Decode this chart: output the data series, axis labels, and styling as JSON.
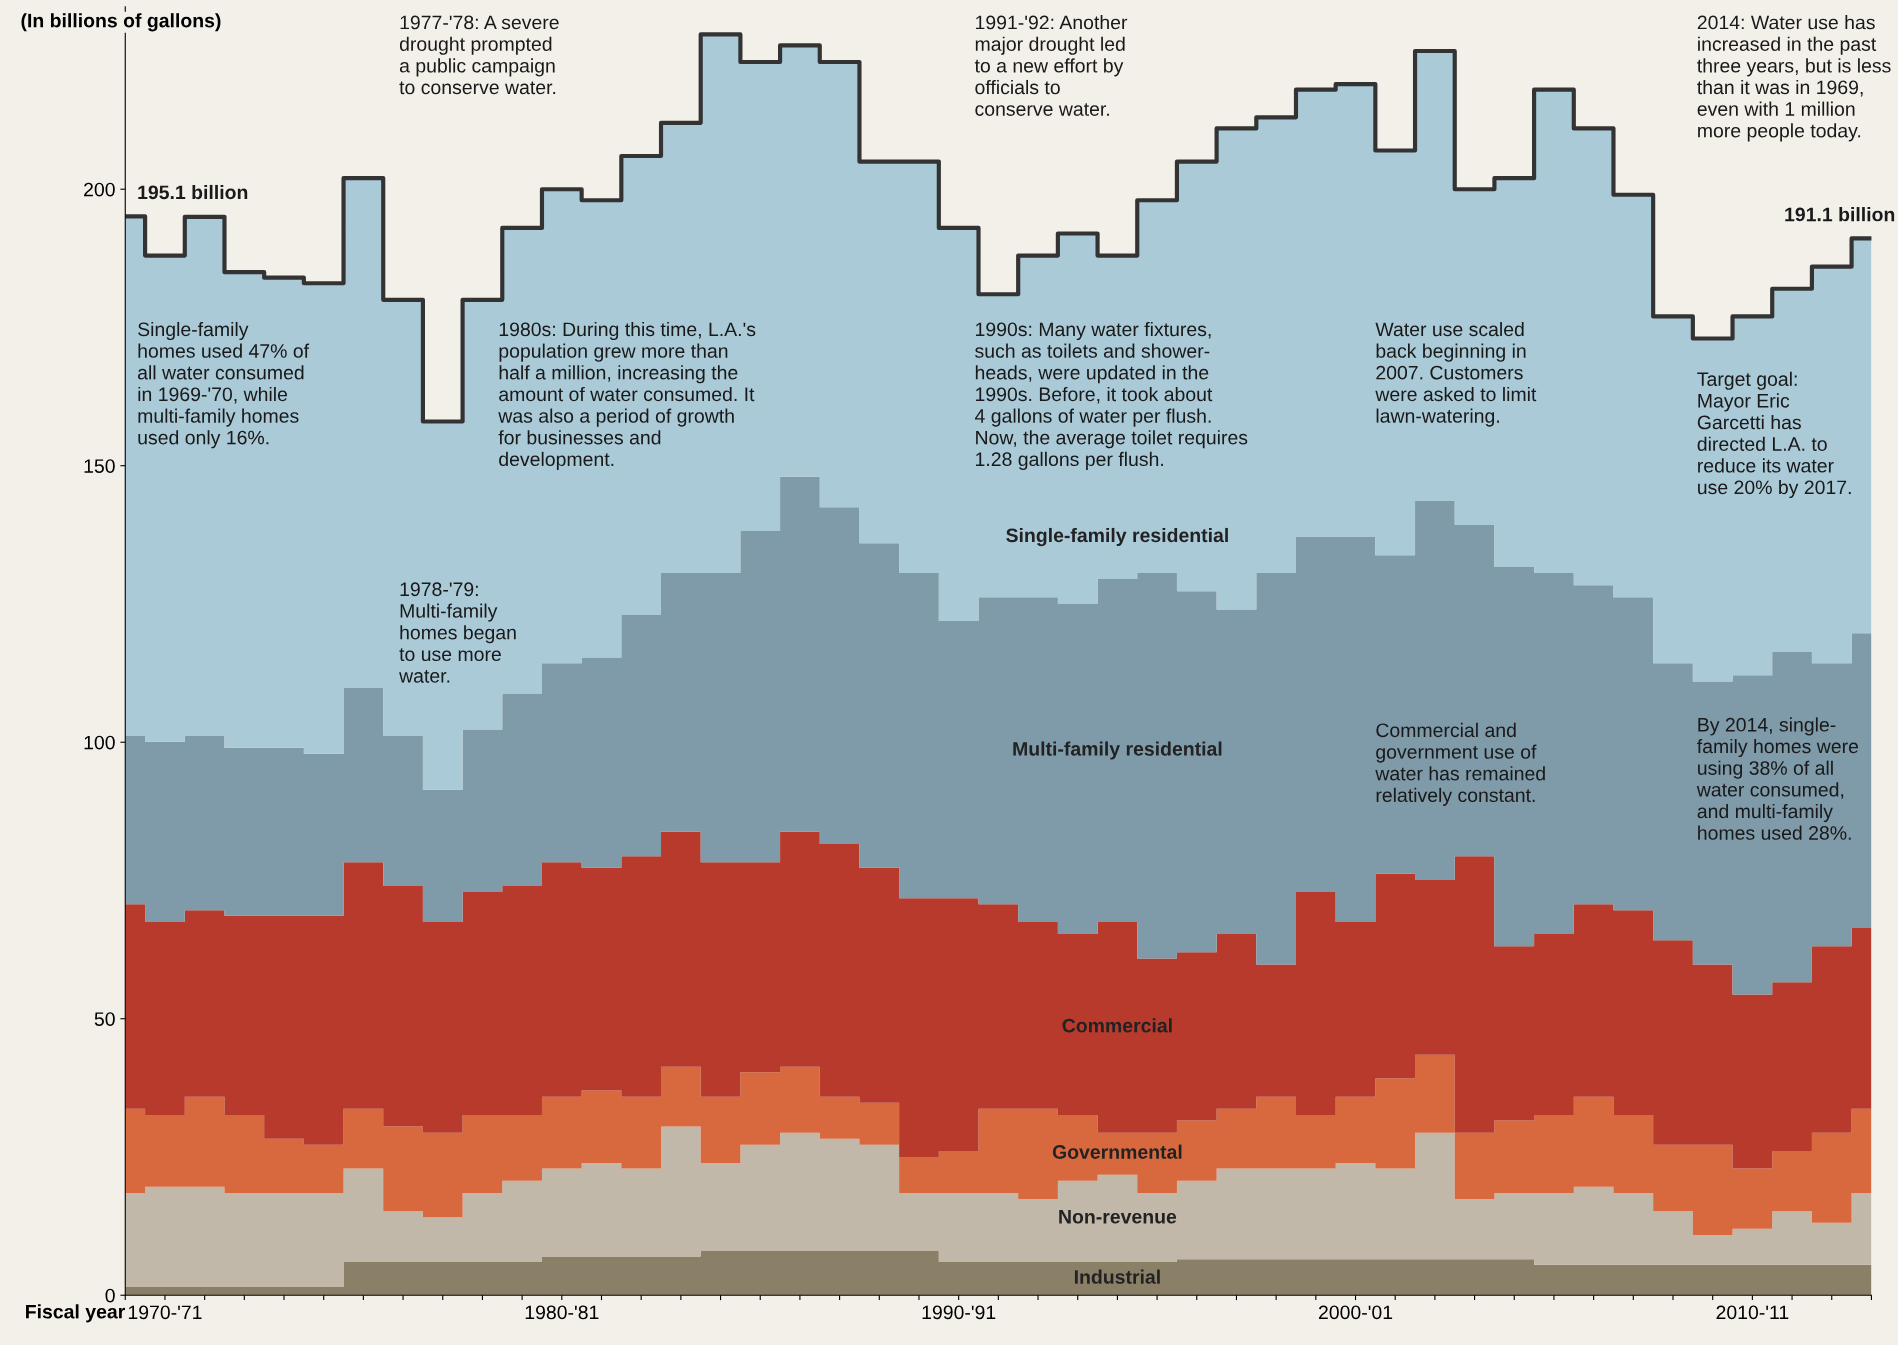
{
  "chart_data": {
    "type": "area",
    "stacked": true,
    "xlabel": "Fiscal year",
    "ylabel": "(In billions of gallons)",
    "categories": [
      null,
      "1970-'71",
      null,
      null,
      null,
      null,
      null,
      null,
      null,
      null,
      null,
      "1980-'81",
      null,
      null,
      null,
      null,
      null,
      null,
      null,
      null,
      null,
      "1990-'91",
      null,
      null,
      null,
      null,
      null,
      null,
      null,
      null,
      null,
      "2000-'01",
      null,
      null,
      null,
      null,
      null,
      null,
      null,
      null,
      null,
      "2010-'11",
      null,
      null,
      null
    ],
    "ylim": [
      0,
      233
    ],
    "yticks": [
      0,
      50,
      100,
      150,
      200
    ],
    "grid": false,
    "legend": false,
    "series": [
      {
        "name": "Industrial",
        "color": "#8a8068",
        "values": [
          1.5,
          1.5,
          1.5,
          1.5,
          1.5,
          1.5,
          6,
          6,
          6,
          6,
          6,
          7,
          7,
          7,
          7,
          8,
          8,
          8,
          8,
          8,
          8,
          6,
          6,
          6,
          6,
          6,
          6,
          6.5,
          6.5,
          6.5,
          6.5,
          6.5,
          6.5,
          6.5,
          6.5,
          6.5,
          5.5,
          5.5,
          5.5,
          5.5,
          5.5,
          5.5,
          5.5,
          5.5,
          5.5
        ]
      },
      {
        "name": "Non-revenue",
        "color": "#c2b8aa",
        "values": [
          17.0,
          18.1,
          18.1,
          17.0,
          17.0,
          17.0,
          16.9,
          9.2,
          8.1,
          12.5,
          14.7,
          15.9,
          16.9,
          15.9,
          23.5,
          15.9,
          19.2,
          21.4,
          20.3,
          19.2,
          10.5,
          12.5,
          12.5,
          11.4,
          14.7,
          15.8,
          12.5,
          14.2,
          16.4,
          16.4,
          16.4,
          17.4,
          16.4,
          22.9,
          10.9,
          12.0,
          13.0,
          14.1,
          13.0,
          9.7,
          5.4,
          6.5,
          9.7,
          7.6,
          13.0
        ]
      },
      {
        "name": "Governmental",
        "color": "#d8693f",
        "values": [
          15.2,
          13.0,
          16.3,
          14.1,
          9.8,
          8.7,
          10.8,
          15.3,
          15.3,
          14.1,
          11.9,
          13.0,
          13.1,
          13.0,
          10.8,
          12.0,
          13.1,
          11.9,
          7.6,
          7.6,
          6.5,
          7.6,
          15.2,
          16.3,
          11.9,
          7.6,
          10.9,
          10.9,
          10.8,
          13.0,
          9.7,
          12.0,
          16.3,
          14.1,
          12.0,
          13.1,
          14.1,
          16.3,
          14.1,
          12.0,
          16.3,
          10.9,
          10.9,
          16.3,
          15.2
        ]
      },
      {
        "name": "Commercial",
        "color": "#b73a2c",
        "values": [
          37.0,
          34.9,
          33.7,
          36.0,
          40.3,
          41.4,
          44.6,
          43.5,
          38.1,
          40.3,
          41.4,
          42.4,
          40.3,
          43.5,
          42.5,
          42.4,
          38.0,
          42.5,
          45.7,
          42.5,
          46.8,
          45.7,
          37.0,
          33.8,
          32.7,
          38.1,
          31.5,
          30.4,
          31.6,
          23.9,
          40.3,
          31.6,
          37.0,
          31.6,
          50.0,
          31.5,
          32.7,
          34.8,
          37.0,
          37.0,
          32.6,
          31.5,
          30.5,
          33.7,
          32.7
        ]
      },
      {
        "name": "Multi-family residential",
        "color": "#7f9aa8",
        "values": [
          30.5,
          32.6,
          31.6,
          30.4,
          30.4,
          29.3,
          31.6,
          27.2,
          23.9,
          29.4,
          34.8,
          36.0,
          38.0,
          43.6,
          46.8,
          52.3,
          59.9,
          64.2,
          60.9,
          58.7,
          58.8,
          50.1,
          55.5,
          58.7,
          59.8,
          62.0,
          69.7,
          65.3,
          58.7,
          70.8,
          64.2,
          69.6,
          57.6,
          68.5,
          59.9,
          68.6,
          65.3,
          57.7,
          56.6,
          50.1,
          51.2,
          57.7,
          59.8,
          51.2,
          53.3
        ]
      },
      {
        "name": "Single-family residential",
        "color": "#aacad8",
        "values": [
          93.9,
          87.9,
          93.8,
          86.0,
          85.0,
          85.1,
          92.1,
          78.8,
          66.6,
          77.7,
          84.2,
          85.7,
          82.7,
          83.0,
          81.4,
          97.4,
          84.8,
          78.0,
          80.5,
          69.0,
          74.4,
          71.1,
          54.8,
          61.8,
          66.9,
          58.5,
          67.4,
          77.7,
          87.0,
          82.4,
          80.9,
          81.9,
          73.2,
          81.4,
          60.7,
          70.3,
          87.4,
          82.6,
          72.8,
          62.7,
          62.0,
          64.9,
          65.6,
          71.7,
          71.4
        ]
      },
      {
        "type": "step",
        "color": "#333333",
        "values": [
          195.1,
          188,
          195,
          185,
          184,
          183,
          202,
          180,
          158,
          180,
          193,
          200,
          198,
          206,
          212,
          228,
          223,
          226,
          223,
          205,
          205,
          193,
          181,
          188,
          192,
          188,
          198,
          205,
          211,
          213,
          218,
          219,
          207,
          225,
          200,
          202,
          218,
          211,
          199,
          177,
          173,
          177,
          182,
          186,
          191.1
        ]
      }
    ],
    "annotations": [
      "195.1 billion",
      "1977-'78: A severe\ndrought prompted\na public campaign\nto conserve water.",
      "1991-'92: Another\nmajor drought led\nto a new effort by\nofficials to\nconserve water.",
      "2014: Water use has\nincreased in the past\nthree years, but is less\nthan it was in 1969,\neven with 1 million\nmore people today.",
      "191.1 billion",
      "Single-family\nhomes used 47% of\nall water consumed\nin 1969-'70, while\nmulti-family homes\nused only 16%.",
      "1980s: During this time, L.A.'s\npopulation grew more than\nhalf a million, increasing the\namount of water consumed. It\nwas also a period of growth\nfor businesses and\ndevelopment.",
      "1990s: Many water fixtures,\nsuch as toilets and shower-\nheads, were updated in the\n1990s. Before, it took about\n4 gallons of water per flush.\nNow, the average toilet requires\n1.28 gallons per flush.",
      "Water use scaled\nback beginning in\n2007. Customers\nwere asked to limit\nlawn-watering.",
      "Target goal:\nMayor Eric\nGarcetti has\ndirected L.A. to\nreduce its water\nuse 20% by 2017.",
      "1978-'79:\nMulti-family\nhomes began\nto use more\nwater.",
      "Commercial and\ngovernment use of\nwater has remained\nrelatively constant.",
      "By 2014, single-\nfamily homes were\nusing 38% of all\nwater consumed,\nand multi-family\nhomes used 28%."
    ]
  }
}
